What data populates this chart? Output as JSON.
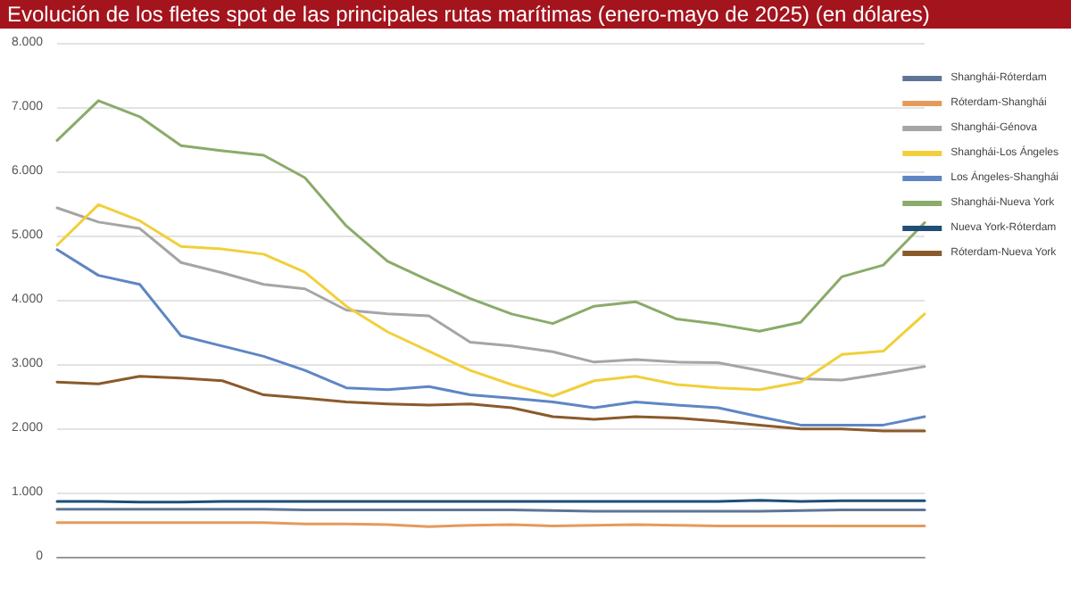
{
  "chart_data": {
    "type": "line",
    "title": "Evolución de los fletes spot de las principales rutas marítimas (enero-mayo de 2025) (en dólares)",
    "categories": [
      null,
      null,
      null,
      null,
      null,
      null,
      null,
      null,
      null,
      null,
      null,
      null,
      null,
      null,
      null,
      null,
      null,
      null,
      null,
      null,
      null,
      null
    ],
    "series": [
      {
        "name": "Shanghái-Róterdam",
        "color": "#5f7596",
        "values": [
          740,
          740,
          740,
          740,
          740,
          740,
          730,
          730,
          730,
          730,
          730,
          730,
          720,
          710,
          710,
          710,
          710,
          710,
          720,
          730,
          730,
          730
        ]
      },
      {
        "name": "Róterdam-Shanghái",
        "color": "#e59a5c",
        "values": [
          530,
          530,
          530,
          530,
          530,
          530,
          510,
          510,
          500,
          470,
          490,
          500,
          480,
          490,
          500,
          490,
          480,
          480,
          480,
          480,
          480,
          480
        ]
      },
      {
        "name": "Shanghái-Génova",
        "color": "#a5a5a5",
        "values": [
          5430,
          5210,
          5110,
          4580,
          4420,
          4240,
          4170,
          3840,
          3780,
          3750,
          3340,
          3280,
          3190,
          3030,
          3070,
          3030,
          3020,
          2900,
          2770,
          2750,
          2850,
          2960
        ]
      },
      {
        "name": "Shanghái-Los Ángeles",
        "color": "#f2cf3a",
        "values": [
          4850,
          5480,
          5230,
          4830,
          4790,
          4710,
          4430,
          3900,
          3500,
          3200,
          2900,
          2680,
          2500,
          2740,
          2810,
          2680,
          2630,
          2600,
          2720,
          3150,
          3200,
          3780
        ]
      },
      {
        "name": "Los Ángeles-Shanghái",
        "color": "#5e86c4",
        "values": [
          4780,
          4380,
          4240,
          3440,
          3280,
          3120,
          2900,
          2630,
          2600,
          2650,
          2520,
          2470,
          2410,
          2320,
          2410,
          2360,
          2320,
          2180,
          2050,
          2050,
          2050,
          2180
        ]
      },
      {
        "name": "Shanghái-Nueva York",
        "color": "#8aab6a",
        "values": [
          6480,
          7100,
          6850,
          6400,
          6320,
          6250,
          5900,
          5150,
          4600,
          4300,
          4020,
          3780,
          3630,
          3900,
          3970,
          3700,
          3620,
          3510,
          3650,
          4360,
          4540,
          5200
        ]
      },
      {
        "name": "Nueva York-Róterdam",
        "color": "#1f4e79",
        "values": [
          860,
          860,
          850,
          850,
          860,
          860,
          860,
          860,
          860,
          860,
          860,
          860,
          860,
          860,
          860,
          860,
          860,
          880,
          860,
          870,
          870,
          870
        ]
      },
      {
        "name": "Róterdam-Nueva York",
        "color": "#8b5a2b",
        "values": [
          2720,
          2690,
          2810,
          2780,
          2740,
          2520,
          2470,
          2410,
          2380,
          2360,
          2380,
          2320,
          2180,
          2140,
          2180,
          2160,
          2110,
          2050,
          1990,
          1990,
          1960,
          1960
        ]
      }
    ],
    "ylim": [
      0,
      8000
    ],
    "yticks": [
      0,
      {
        "value": 1000,
        "label": "1.000"
      },
      {
        "value": 2000,
        "label": "2.000"
      },
      {
        "value": 3000,
        "label": "3.000"
      },
      {
        "value": 4000,
        "label": "4.000"
      },
      {
        "value": 5000,
        "label": "5.000"
      },
      {
        "value": 6000,
        "label": "6.000"
      },
      {
        "value": 7000,
        "label": "7.000"
      },
      {
        "value": 8000,
        "label": "8.000"
      }
    ],
    "grid": "y",
    "legend": "right",
    "marker": "none",
    "line_style": "solid"
  }
}
